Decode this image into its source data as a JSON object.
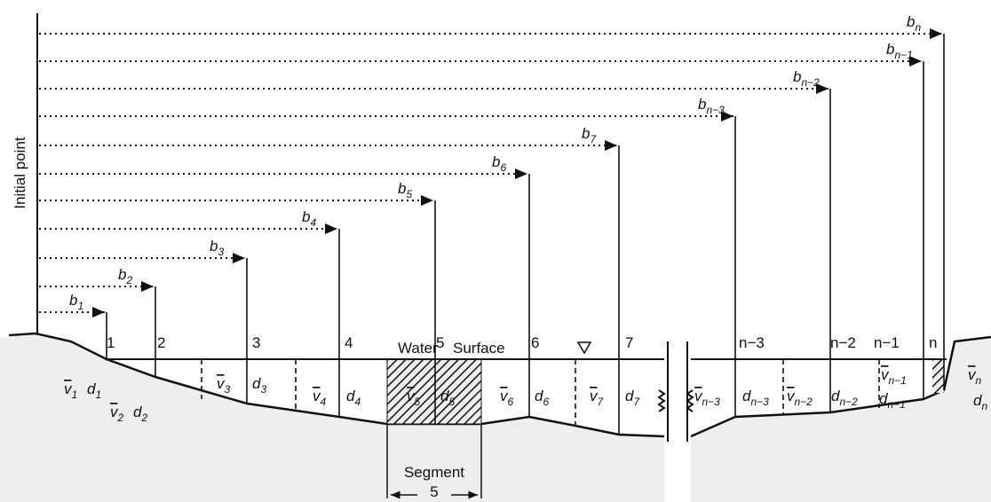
{
  "initial_point": "Initial point",
  "distances": [
    {
      "base": "b",
      "sub": "1"
    },
    {
      "base": "b",
      "sub": "2"
    },
    {
      "base": "b",
      "sub": "3"
    },
    {
      "base": "b",
      "sub": "4"
    },
    {
      "base": "b",
      "sub": "5"
    },
    {
      "base": "b",
      "sub": "6"
    },
    {
      "base": "b",
      "sub": "7"
    },
    {
      "base": "b",
      "sub": "n−3"
    },
    {
      "base": "b",
      "sub": "n−2"
    },
    {
      "base": "b",
      "sub": "n−1"
    },
    {
      "base": "b",
      "sub": "n"
    }
  ],
  "verticals": [
    "1",
    "2",
    "3",
    "4",
    "5",
    "6",
    "7",
    "n−3",
    "n−2",
    "n−1",
    "n"
  ],
  "water_label": "Water",
  "surface_label": "Surface",
  "velocities": [
    {
      "base": "v",
      "sub": "1"
    },
    {
      "base": "v",
      "sub": "2"
    },
    {
      "base": "v",
      "sub": "3"
    },
    {
      "base": "v",
      "sub": "4"
    },
    {
      "base": "v",
      "sub": "5"
    },
    {
      "base": "v",
      "sub": "6"
    },
    {
      "base": "v",
      "sub": "7"
    },
    {
      "base": "v",
      "sub": "n−3"
    },
    {
      "base": "v",
      "sub": "n−2"
    },
    {
      "base": "v",
      "sub": "n−1"
    },
    {
      "base": "v",
      "sub": "n"
    }
  ],
  "depths": [
    {
      "base": "d",
      "sub": "1"
    },
    {
      "base": "d",
      "sub": "2"
    },
    {
      "base": "d",
      "sub": "3"
    },
    {
      "base": "d",
      "sub": "4"
    },
    {
      "base": "d",
      "sub": "5"
    },
    {
      "base": "d",
      "sub": "6"
    },
    {
      "base": "d",
      "sub": "7"
    },
    {
      "base": "d",
      "sub": "n−3"
    },
    {
      "base": "d",
      "sub": "n−2"
    },
    {
      "base": "d",
      "sub": "n−1"
    },
    {
      "base": "d",
      "sub": "n"
    }
  ],
  "segment_label": "Segment",
  "segment_number": "5"
}
